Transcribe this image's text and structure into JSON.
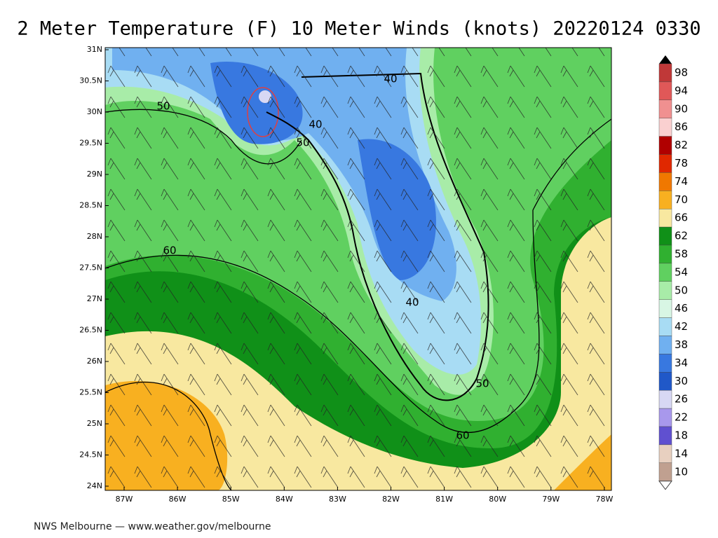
{
  "title": "2 Meter Temperature (F) 10 Meter Winds (knots) 20220124 0330",
  "lat_labels": [
    "31N",
    "30.5N",
    "30N",
    "29.5N",
    "29N",
    "28.5N",
    "28N",
    "27.5N",
    "27N",
    "26.5N",
    "26N",
    "25.5N",
    "25N",
    "24.5N",
    "24N"
  ],
  "lon_labels": [
    "87W",
    "86W",
    "85W",
    "84W",
    "83W",
    "82W",
    "81W",
    "80W",
    "79W",
    "78W"
  ],
  "colorbar": {
    "labels": [
      "98",
      "94",
      "90",
      "86",
      "82",
      "78",
      "74",
      "70",
      "66",
      "62",
      "58",
      "54",
      "50",
      "46",
      "42",
      "38",
      "34",
      "30",
      "26",
      "22",
      "18",
      "14",
      "10"
    ],
    "colors": [
      "#c03838",
      "#e05858",
      "#f09090",
      "#fad0d0",
      "#b00000",
      "#e02800",
      "#f07800",
      "#f8b020",
      "#f8e8a0",
      "#109018",
      "#30b030",
      "#60d060",
      "#a8eca8",
      "#d8f6e4",
      "#a8dcf4",
      "#70b0f0",
      "#3878e0",
      "#2058c8",
      "#d8d8f4",
      "#a898ec",
      "#6050d0",
      "#e8d0c0",
      "#c0a090"
    ]
  },
  "contour_labels": [
    "50",
    "40",
    "40",
    "50",
    "60",
    "40",
    "50",
    "60"
  ],
  "footer": "NWS Melbourne — www.weather.gov/melbourne"
}
